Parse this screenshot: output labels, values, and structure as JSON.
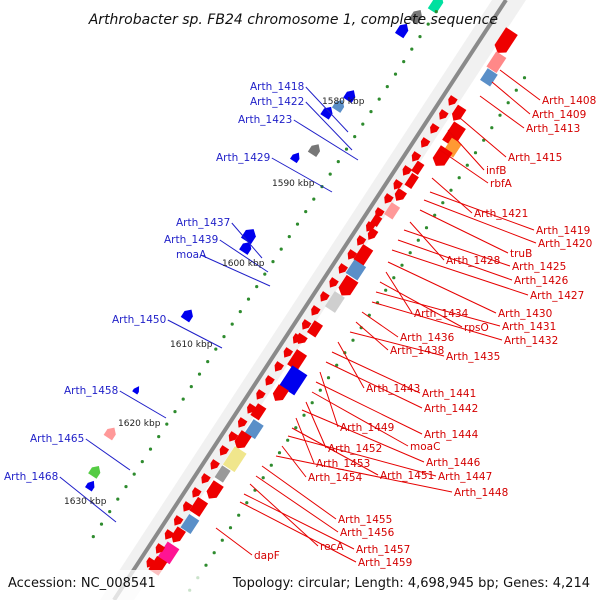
{
  "title": "Arthrobacter sp. FB24 chromosome 1, complete sequence",
  "footer": {
    "accession": "Accession: NC_008541",
    "topology": "Topology: circular; Length: 4,698,945 bp; Genes: 4,214"
  },
  "kbp_ticks": [
    "1580 kbp",
    "1590 kbp",
    "1600 kbp",
    "1610 kbp",
    "1620 kbp",
    "1630 kbp"
  ],
  "left_labels": [
    "Arth_1418",
    "Arth_1422",
    "Arth_1423",
    "Arth_1429",
    "Arth_1437",
    "Arth_1439",
    "moaA",
    "Arth_1450",
    "Arth_1458",
    "Arth_1465",
    "Arth_1468"
  ],
  "right_labels": [
    "Arth_1408",
    "Arth_1409",
    "Arth_1413",
    "Arth_1415",
    "infB",
    "rbfA",
    "Arth_1421",
    "Arth_1419",
    "Arth_1420",
    "truB",
    "Arth_1428",
    "Arth_1425",
    "Arth_1426",
    "Arth_1427",
    "Arth_1430",
    "Arth_1434",
    "rpsO",
    "Arth_1431",
    "Arth_1432",
    "Arth_1436",
    "Arth_1438",
    "Arth_1435",
    "Arth_1443",
    "Arth_1441",
    "Arth_1442",
    "Arth_1449",
    "Arth_1444",
    "moaC",
    "Arth_1452",
    "Arth_1446",
    "Arth_1453",
    "Arth_1451",
    "Arth_1447",
    "Arth_1454",
    "Arth_1448",
    "Arth_1455",
    "Arth_1456",
    "recA",
    "Arth_1457",
    "dapF",
    "Arth_1459"
  ],
  "colors": {
    "forward": "#ee0000",
    "reverse": "#0000ee",
    "backbone": "#8a8a8a",
    "left_label": "#1f1fc8",
    "right_label": "#d40000"
  }
}
